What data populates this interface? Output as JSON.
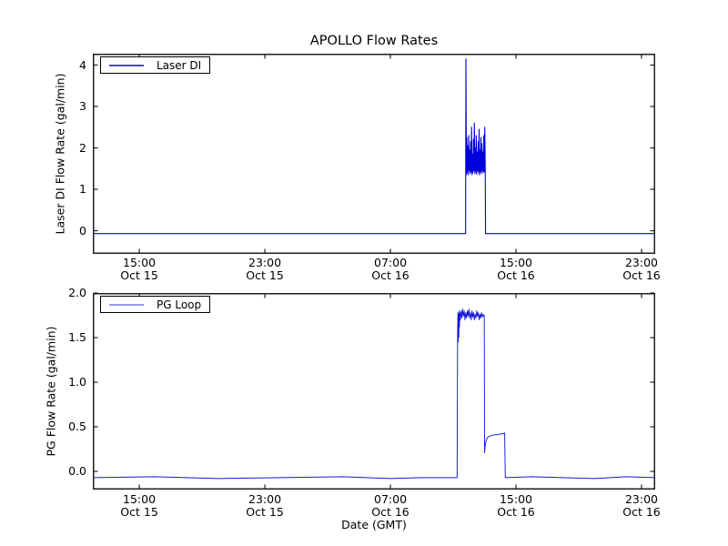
{
  "title": "APOLLO Flow Rates",
  "xlabel": "Date (GMT)",
  "axis": {
    "spine_color": "#1f1f1f",
    "tick_color": "#1f1f1f",
    "text_color": "#000000",
    "background": "#ffffff"
  },
  "chart_data": [
    {
      "type": "line",
      "ylabel": "Laser DI Flow Rate (gal/min)",
      "legend": {
        "label": "Laser DI",
        "position": "upper left",
        "sample_color": "#4848d0"
      },
      "grid": false,
      "x_domain": [
        12.04,
        47.87
      ],
      "y_domain": [
        -0.56,
        4.275
      ],
      "x_ticks": [
        {
          "t": 15,
          "line1": "15:00",
          "line2": "Oct 15"
        },
        {
          "t": 23,
          "line1": "23:00",
          "line2": "Oct 15"
        },
        {
          "t": 31,
          "line1": "07:00",
          "line2": "Oct 16"
        },
        {
          "t": 39,
          "line1": "15:00",
          "line2": "Oct 16"
        },
        {
          "t": 47,
          "line1": "23:00",
          "line2": "Oct 16"
        }
      ],
      "y_ticks": [
        {
          "v": 0,
          "label": "0"
        },
        {
          "v": 1,
          "label": "1"
        },
        {
          "v": 2,
          "label": "2"
        },
        {
          "v": 3,
          "label": "3"
        },
        {
          "v": 4,
          "label": "4"
        }
      ],
      "series": [
        {
          "name": "Laser DI",
          "color": "#0101dc",
          "width": 1.1,
          "points": [
            [
              12.04,
              -0.07
            ],
            [
              24,
              -0.07
            ],
            [
              30,
              -0.07
            ],
            [
              35.79,
              -0.07
            ],
            [
              35.81,
              4.15
            ],
            [
              35.84,
              1.35
            ],
            [
              35.87,
              2.25
            ],
            [
              35.9,
              1.4
            ],
            [
              35.93,
              2.05
            ],
            [
              35.96,
              1.35
            ],
            [
              35.99,
              2.3
            ],
            [
              36.02,
              1.45
            ],
            [
              36.05,
              1.95
            ],
            [
              36.08,
              1.38
            ],
            [
              36.11,
              2.15
            ],
            [
              36.14,
              1.42
            ],
            [
              36.17,
              2.5
            ],
            [
              36.2,
              1.35
            ],
            [
              36.23,
              1.85
            ],
            [
              36.26,
              1.4
            ],
            [
              36.29,
              2.2
            ],
            [
              36.32,
              1.45
            ],
            [
              36.35,
              2.6
            ],
            [
              36.38,
              1.38
            ],
            [
              36.41,
              2.0
            ],
            [
              36.44,
              1.42
            ],
            [
              36.47,
              2.3
            ],
            [
              36.5,
              1.36
            ],
            [
              36.53,
              1.9
            ],
            [
              36.56,
              1.45
            ],
            [
              36.59,
              2.15
            ],
            [
              36.62,
              1.4
            ],
            [
              36.65,
              2.45
            ],
            [
              36.68,
              1.35
            ],
            [
              36.71,
              1.95
            ],
            [
              36.74,
              1.42
            ],
            [
              36.77,
              2.25
            ],
            [
              36.8,
              1.38
            ],
            [
              36.83,
              2.1
            ],
            [
              36.86,
              1.45
            ],
            [
              36.89,
              1.9
            ],
            [
              36.92,
              1.4
            ],
            [
              36.95,
              2.3
            ],
            [
              36.98,
              1.42
            ],
            [
              37.01,
              2.5
            ],
            [
              37.04,
              1.6
            ],
            [
              37.06,
              -0.07
            ],
            [
              40,
              -0.07
            ],
            [
              44,
              -0.07
            ],
            [
              47.87,
              -0.07
            ]
          ]
        }
      ]
    },
    {
      "type": "line",
      "ylabel": "PG Flow Rate (gal/min)",
      "legend": {
        "label": "PG Loop",
        "position": "upper left",
        "sample_color": "#9a9ae8"
      },
      "grid": false,
      "x_domain": [
        12.04,
        47.87
      ],
      "y_domain": [
        -0.204,
        2.0
      ],
      "x_ticks": [
        {
          "t": 15,
          "line1": "15:00",
          "line2": "Oct 15"
        },
        {
          "t": 23,
          "line1": "23:00",
          "line2": "Oct 15"
        },
        {
          "t": 31,
          "line1": "07:00",
          "line2": "Oct 16"
        },
        {
          "t": 39,
          "line1": "15:00",
          "line2": "Oct 16"
        },
        {
          "t": 47,
          "line1": "23:00",
          "line2": "Oct 16"
        }
      ],
      "y_ticks": [
        {
          "v": 0.0,
          "label": "0.0"
        },
        {
          "v": 0.5,
          "label": "0.5"
        },
        {
          "v": 1.0,
          "label": "1.0"
        },
        {
          "v": 1.5,
          "label": "1.5"
        },
        {
          "v": 2.0,
          "label": "2.0"
        }
      ],
      "series": [
        {
          "name": "PG Loop",
          "color": "#1515d8",
          "width": 0.95,
          "points": [
            [
              12.04,
              -0.07
            ],
            [
              16,
              -0.06
            ],
            [
              20,
              -0.08
            ],
            [
              24,
              -0.07
            ],
            [
              28,
              -0.06
            ],
            [
              31,
              -0.08
            ],
            [
              33,
              -0.07
            ],
            [
              35.25,
              -0.07
            ],
            [
              35.28,
              1.55
            ],
            [
              35.3,
              1.78
            ],
            [
              35.32,
              1.45
            ],
            [
              35.34,
              1.76
            ],
            [
              35.36,
              1.5
            ],
            [
              35.38,
              1.8
            ],
            [
              35.4,
              1.62
            ],
            [
              35.42,
              1.78
            ],
            [
              35.45,
              1.7
            ],
            [
              35.5,
              1.8
            ],
            [
              35.55,
              1.72
            ],
            [
              35.6,
              1.82
            ],
            [
              35.65,
              1.74
            ],
            [
              35.7,
              1.8
            ],
            [
              35.75,
              1.7
            ],
            [
              35.8,
              1.78
            ],
            [
              35.85,
              1.72
            ],
            [
              35.9,
              1.8
            ],
            [
              35.95,
              1.74
            ],
            [
              36,
              1.82
            ],
            [
              36.05,
              1.72
            ],
            [
              36.1,
              1.78
            ],
            [
              36.15,
              1.7
            ],
            [
              36.2,
              1.8
            ],
            [
              36.25,
              1.73
            ],
            [
              36.3,
              1.78
            ],
            [
              36.35,
              1.7
            ],
            [
              36.4,
              1.76
            ],
            [
              36.45,
              1.72
            ],
            [
              36.5,
              1.8
            ],
            [
              36.55,
              1.74
            ],
            [
              36.6,
              1.78
            ],
            [
              36.65,
              1.7
            ],
            [
              36.7,
              1.76
            ],
            [
              36.75,
              1.72
            ],
            [
              36.8,
              1.78
            ],
            [
              36.85,
              1.73
            ],
            [
              36.9,
              1.76
            ],
            [
              36.95,
              1.74
            ],
            [
              36.98,
              1.75
            ],
            [
              37,
              0.21
            ],
            [
              37.03,
              0.28
            ],
            [
              37.08,
              0.33
            ],
            [
              37.15,
              0.37
            ],
            [
              37.25,
              0.39
            ],
            [
              37.4,
              0.4
            ],
            [
              37.6,
              0.41
            ],
            [
              37.8,
              0.41
            ],
            [
              38,
              0.42
            ],
            [
              38.15,
              0.42
            ],
            [
              38.28,
              0.43
            ],
            [
              38.32,
              -0.07
            ],
            [
              40,
              -0.06
            ],
            [
              42,
              -0.07
            ],
            [
              44,
              -0.08
            ],
            [
              46,
              -0.06
            ],
            [
              47.87,
              -0.07
            ]
          ]
        }
      ]
    }
  ]
}
